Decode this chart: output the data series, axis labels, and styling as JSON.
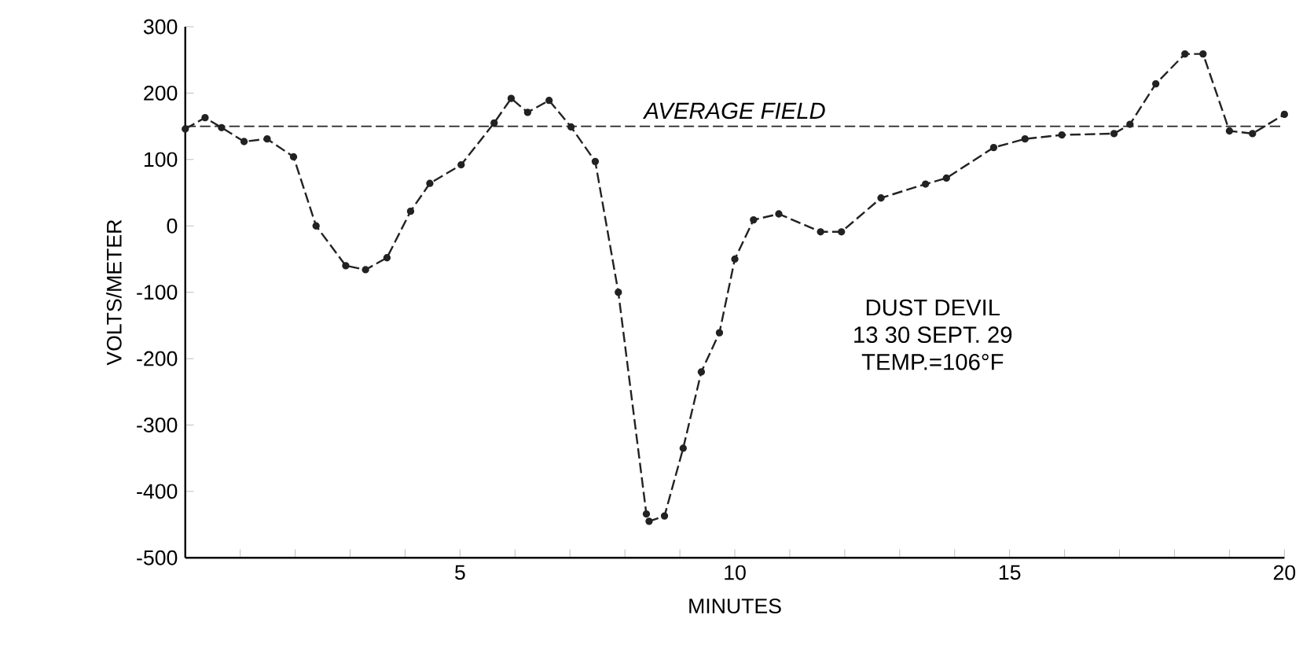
{
  "chart_data": {
    "type": "line",
    "xlabel": "MINUTES",
    "ylabel": "VOLTS/METER",
    "x": [
      0,
      0.36,
      0.66,
      1.07,
      1.49,
      1.97,
      2.38,
      2.92,
      3.28,
      3.67,
      4.1,
      4.45,
      5.02,
      5.62,
      5.93,
      6.23,
      6.62,
      7.02,
      7.46,
      7.88,
      8.39,
      8.44,
      8.72,
      9.06,
      9.39,
      9.72,
      10.0,
      10.34,
      10.8,
      11.56,
      11.94,
      12.66,
      13.47,
      13.85,
      14.71,
      15.28,
      15.95,
      16.9,
      17.19,
      17.66,
      18.19,
      18.52,
      19.0,
      19.42,
      20.0
    ],
    "values": [
      146,
      163,
      148,
      127,
      131,
      104,
      0,
      -60,
      -66,
      -48,
      22,
      64,
      92,
      155,
      192,
      171,
      189,
      149,
      97,
      -100,
      -434,
      -445,
      -437,
      -335,
      -220,
      -161,
      -50,
      9,
      18,
      -9,
      -9,
      42,
      63,
      72,
      118,
      131,
      137,
      139,
      153,
      214,
      259,
      259,
      143,
      139,
      168
    ],
    "color": "#222222",
    "marker": "circle",
    "line_style": "dashed",
    "xlim": [
      0,
      20
    ],
    "ylim": [
      -500,
      300
    ],
    "xticks": [
      {
        "value": 1,
        "label": null
      },
      {
        "value": 2,
        "label": null
      },
      {
        "value": 3,
        "label": null
      },
      {
        "value": 4,
        "label": null
      },
      5,
      {
        "value": 6,
        "label": null
      },
      {
        "value": 7,
        "label": null
      },
      {
        "value": 8,
        "label": null
      },
      {
        "value": 9,
        "label": null
      },
      10,
      {
        "value": 11,
        "label": null
      },
      {
        "value": 12,
        "label": null
      },
      {
        "value": 13,
        "label": null
      },
      {
        "value": 14,
        "label": null
      },
      15,
      {
        "value": 16,
        "label": null
      },
      {
        "value": 17,
        "label": null
      },
      {
        "value": 18,
        "label": null
      },
      {
        "value": 19,
        "label": null
      },
      20
    ],
    "yticks": [
      -500,
      -400,
      -300,
      -200,
      -100,
      0,
      100,
      200,
      300
    ],
    "ref_lines": [
      {
        "axis": "y",
        "value": 150,
        "label": "AVERAGE FIELD",
        "line_style": "dashed"
      }
    ],
    "annotations": [
      "DUST DEVIL",
      "13 30 SEPT. 29",
      "TEMP.=106°F"
    ]
  }
}
